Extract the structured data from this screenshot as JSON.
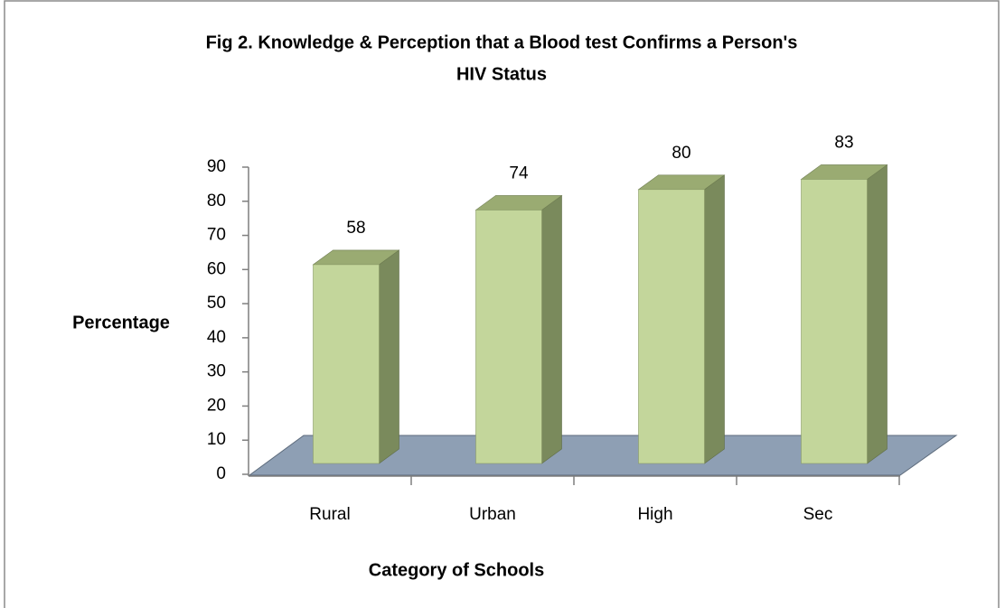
{
  "chart_data": {
    "type": "bar3d",
    "title": [
      "Fig 2. Knowledge & Perception that a Blood test Confirms a Person's",
      "HIV Status"
    ],
    "x_label": "Category of Schools",
    "y_label": "Percentage",
    "categories": [
      "Rural",
      "Urban",
      "High",
      "Sec"
    ],
    "values": [
      58,
      74,
      80,
      83
    ],
    "color": "#c3d69b",
    "ylim": [
      0,
      90
    ],
    "yticks": [
      0,
      10,
      20,
      30,
      40,
      50,
      60,
      70,
      80,
      90
    ],
    "data_labels": true
  }
}
